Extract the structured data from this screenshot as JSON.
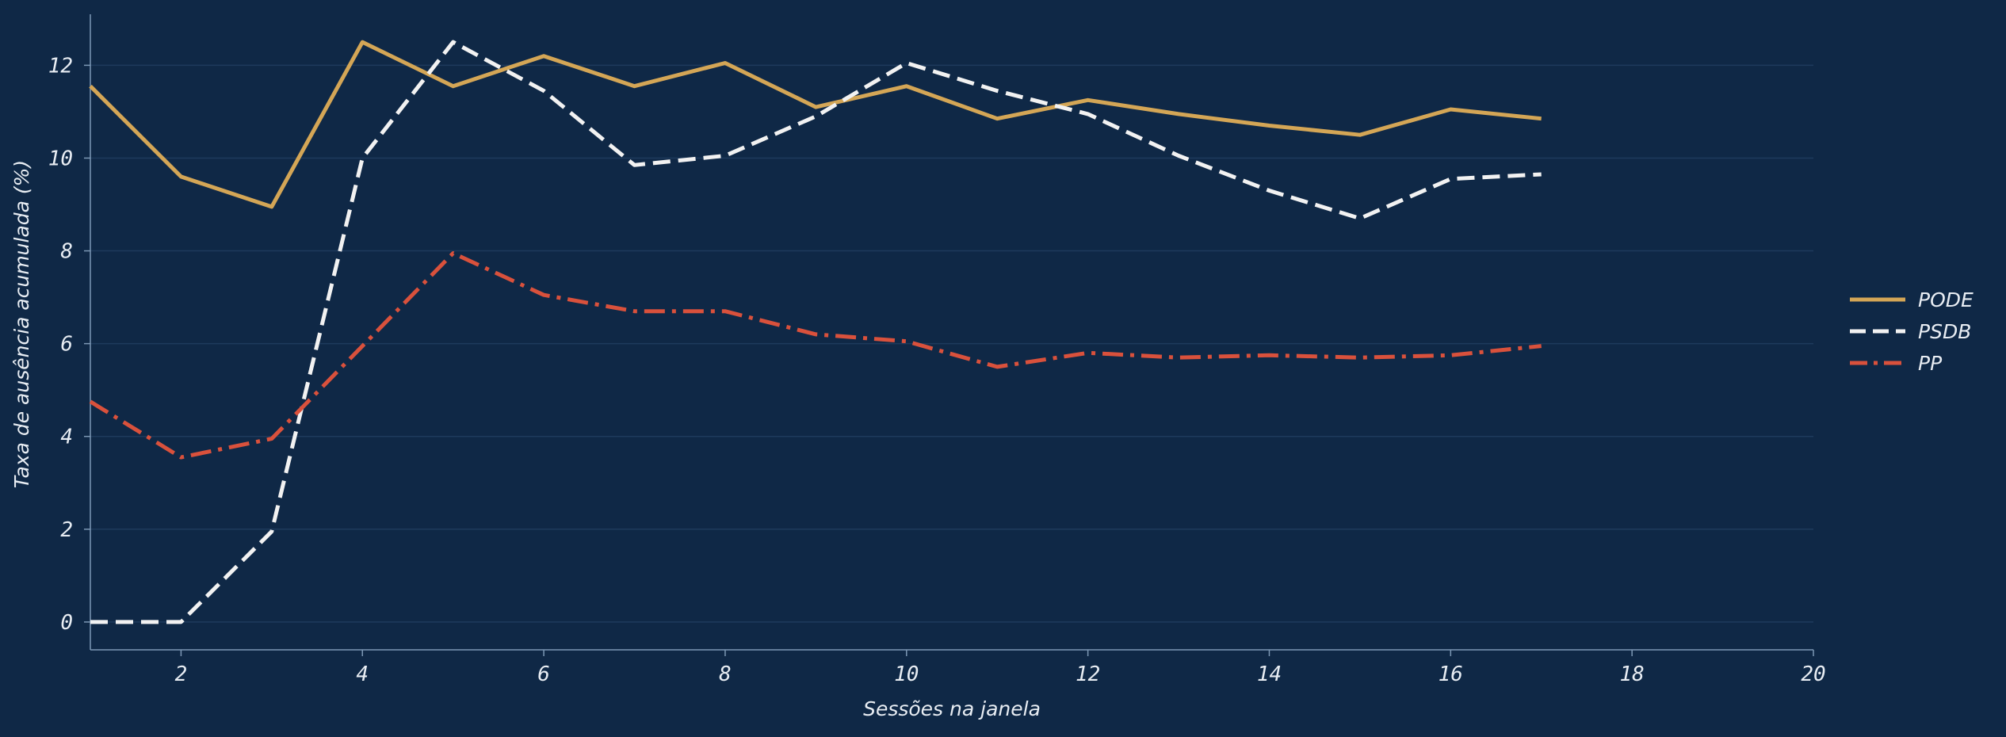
{
  "chart_data": {
    "type": "line",
    "title": "",
    "xlabel": "Sessões na janela",
    "ylabel": "Taxa de ausência acumulada (%)",
    "xlim": [
      1,
      20
    ],
    "ylim": [
      -0.6,
      13.1
    ],
    "xticks": [
      2,
      4,
      6,
      8,
      10,
      12,
      14,
      16,
      18,
      20
    ],
    "yticks": [
      0,
      2,
      4,
      6,
      8,
      10,
      12
    ],
    "grid": "horizontal",
    "legend_position": "right",
    "x": [
      1,
      2,
      3,
      4,
      5,
      6,
      7,
      8,
      9,
      10,
      11,
      12,
      13,
      14,
      15,
      16,
      17
    ],
    "series": [
      {
        "name": "PODE",
        "color": "#d4a656",
        "line_style": "solid",
        "values": [
          11.55,
          9.6,
          8.95,
          12.5,
          11.55,
          12.2,
          11.55,
          12.05,
          11.1,
          11.55,
          10.85,
          11.25,
          10.95,
          10.7,
          10.5,
          11.05,
          10.85
        ]
      },
      {
        "name": "PSDB",
        "color": "#f2f2f2",
        "line_style": "dashed",
        "values": [
          0,
          0,
          1.95,
          10.0,
          12.5,
          11.45,
          9.85,
          10.05,
          10.9,
          12.05,
          11.45,
          10.95,
          10.05,
          9.3,
          8.7,
          9.55,
          9.65
        ]
      },
      {
        "name": "PP",
        "color": "#d9513c",
        "line_style": "dashdot",
        "values": [
          4.75,
          3.55,
          3.95,
          5.95,
          7.95,
          7.05,
          6.7,
          6.7,
          6.2,
          6.05,
          5.5,
          5.8,
          5.7,
          5.75,
          5.7,
          5.75,
          5.95
        ]
      }
    ]
  }
}
